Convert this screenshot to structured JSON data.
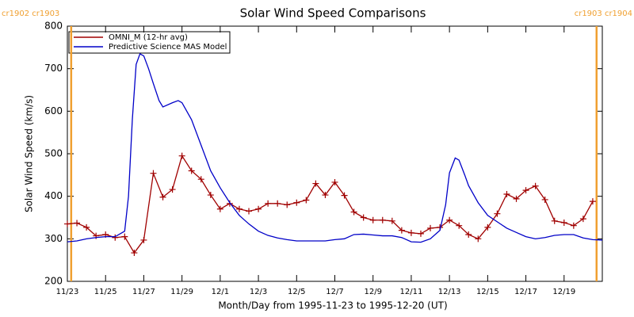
{
  "chart_data": {
    "type": "line",
    "title": "Solar Wind Speed Comparisons",
    "x_label": "Month/Day from 1995-11-23 to 1995-12-20 (UT)",
    "y_label": "Solar Wind Speed (km/s)",
    "xlim": [
      0,
      28
    ],
    "ylim": [
      200,
      800
    ],
    "xticks": [
      {
        "value": 0,
        "label": "11/23"
      },
      {
        "value": 2,
        "label": "11/25"
      },
      {
        "value": 4,
        "label": "11/27"
      },
      {
        "value": 6,
        "label": "11/29"
      },
      {
        "value": 8,
        "label": "12/1"
      },
      {
        "value": 10,
        "label": "12/3"
      },
      {
        "value": 12,
        "label": "12/5"
      },
      {
        "value": 14,
        "label": "12/7"
      },
      {
        "value": 16,
        "label": "12/9"
      },
      {
        "value": 18,
        "label": "12/11"
      },
      {
        "value": 20,
        "label": "12/13"
      },
      {
        "value": 22,
        "label": "12/15"
      },
      {
        "value": 24,
        "label": "12/17"
      },
      {
        "value": 26,
        "label": "12/19"
      }
    ],
    "yticks": [
      200,
      300,
      400,
      500,
      600,
      700,
      800
    ],
    "annotations": [
      {
        "x": 0.2,
        "label": "cr1902 cr1903",
        "color": "#f0a030"
      },
      {
        "x": 27.7,
        "label": "cr1903 cr1904",
        "color": "#f0a030"
      }
    ],
    "series": [
      {
        "name": "OMNI_M (12-hr avg)",
        "color": "#a00000",
        "marker": "plus",
        "x": [
          0,
          0.5,
          1,
          1.5,
          2,
          2.5,
          3,
          3.5,
          4,
          4.5,
          5,
          5.5,
          6,
          6.5,
          7,
          7.5,
          8,
          8.5,
          9,
          9.5,
          10,
          10.5,
          11,
          11.5,
          12,
          12.5,
          13,
          13.5,
          14,
          14.5,
          15,
          15.5,
          16,
          16.5,
          17,
          17.5,
          18,
          18.5,
          19,
          19.5,
          20,
          20.5,
          21,
          21.5,
          22,
          22.5,
          23,
          23.5,
          24,
          24.5,
          25,
          25.5,
          26,
          26.5,
          27,
          27.5
        ],
        "values": [
          335,
          337,
          327,
          307,
          310,
          303,
          305,
          267,
          297,
          454,
          398,
          416,
          495,
          460,
          440,
          403,
          370,
          383,
          370,
          365,
          370,
          383,
          383,
          380,
          385,
          391,
          430,
          403,
          433,
          402,
          363,
          350,
          344,
          344,
          342,
          320,
          314,
          312,
          325,
          327,
          344,
          331,
          310,
          300,
          327,
          359,
          405,
          394,
          414,
          424,
          392,
          342,
          338,
          331,
          347,
          388
        ]
      },
      {
        "name": "Predictive Science MAS Model",
        "color": "#0000c8",
        "marker": "none",
        "x": [
          0,
          0.5,
          1,
          1.5,
          2,
          2.5,
          3,
          3.2,
          3.4,
          3.6,
          3.8,
          4,
          4.25,
          4.5,
          4.8,
          5,
          5.5,
          5.8,
          6,
          6.5,
          7,
          7.5,
          8,
          8.5,
          9,
          9.5,
          10,
          10.5,
          11,
          11.5,
          12,
          13,
          13.5,
          14,
          14.5,
          15,
          15.5,
          16,
          16.5,
          17,
          17.5,
          18,
          18.5,
          19,
          19.5,
          19.8,
          20,
          20.3,
          20.5,
          20.8,
          21,
          21.5,
          22,
          22.5,
          23,
          23.5,
          24,
          24.5,
          25,
          25.5,
          26,
          26.5,
          27,
          27.5,
          28
        ],
        "values": [
          293,
          295,
          300,
          303,
          305,
          305,
          318,
          400,
          580,
          710,
          735,
          730,
          700,
          665,
          625,
          610,
          620,
          625,
          620,
          580,
          520,
          460,
          420,
          385,
          355,
          335,
          318,
          308,
          302,
          298,
          295,
          295,
          295,
          298,
          300,
          310,
          311,
          309,
          307,
          307,
          303,
          293,
          292,
          300,
          320,
          380,
          455,
          490,
          485,
          450,
          425,
          385,
          355,
          340,
          325,
          315,
          305,
          300,
          303,
          308,
          310,
          310,
          302,
          298,
          297
        ]
      }
    ]
  }
}
